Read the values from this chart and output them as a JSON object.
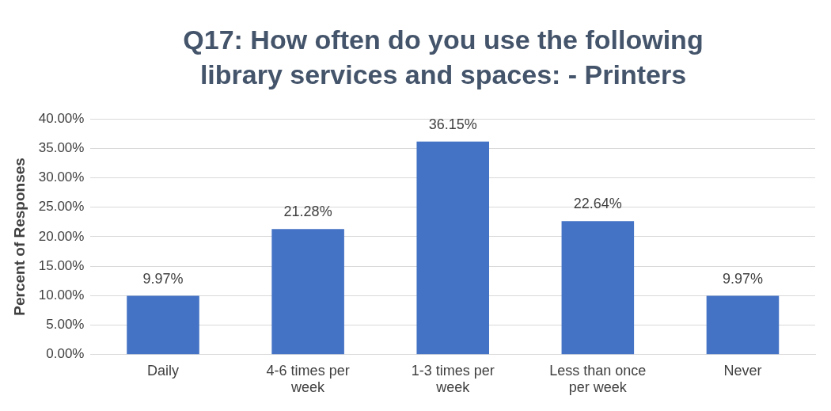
{
  "chart_data": {
    "type": "bar",
    "title": "Q17: How often do you use the following library services and spaces: - Printers",
    "ylabel": "Percent of Responses",
    "categories": [
      "Daily",
      "4-6 times per week",
      "1-3 times per week",
      "Less than once per week",
      "Never"
    ],
    "values": [
      9.97,
      21.28,
      36.15,
      22.64,
      9.97
    ],
    "value_labels": [
      "9.97%",
      "21.28%",
      "36.15%",
      "22.64%",
      "9.97%"
    ],
    "color": "#4472c4",
    "ylim": [
      0,
      40
    ],
    "yticks": [
      {
        "value": 0,
        "label": "0.00%"
      },
      {
        "value": 5,
        "label": "5.00%"
      },
      {
        "value": 10,
        "label": "10.00%"
      },
      {
        "value": 15,
        "label": "15.00%"
      },
      {
        "value": 20,
        "label": "20.00%"
      },
      {
        "value": 25,
        "label": "25.00%"
      },
      {
        "value": 30,
        "label": "30.00%"
      },
      {
        "value": 35,
        "label": "35.00%"
      },
      {
        "value": 40,
        "label": "40.00%"
      }
    ],
    "grid": "y"
  }
}
